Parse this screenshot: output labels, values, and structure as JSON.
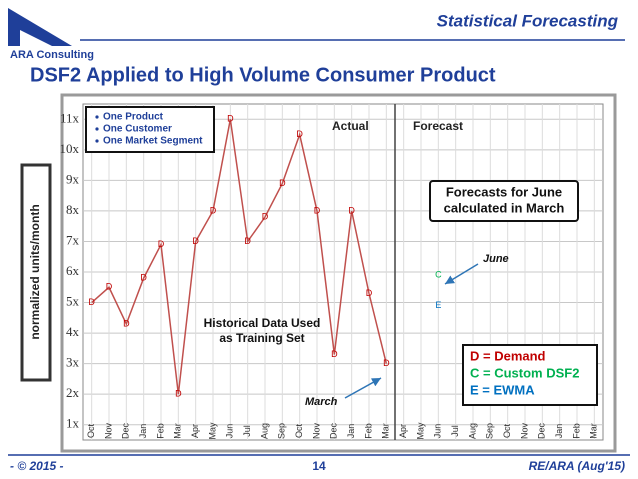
{
  "header": {
    "title": "Statistical Forecasting",
    "logo": "ARA Consulting"
  },
  "slide_title": "DSF2 Applied to High Volume Consumer Product",
  "footer": {
    "left": "- © 2015 -",
    "page": "14",
    "right": "RE/ARA (Aug'15)"
  },
  "chart_data": {
    "type": "line",
    "y_label": "normalized units/month",
    "info_box": [
      "One Product",
      "One Customer",
      "One Market Segment"
    ],
    "annotations": {
      "actual": "Actual",
      "forecast": "Forecast",
      "forecast_note": [
        "Forecasts for June",
        "calculated in March"
      ],
      "june": "June",
      "march": "March",
      "training": [
        "Historical Data Used",
        "as Training Set"
      ]
    },
    "categories": [
      "Oct",
      "Nov",
      "Dec",
      "Jan",
      "Feb",
      "Mar",
      "Apr",
      "May",
      "Jun",
      "Jul",
      "Aug",
      "Sep",
      "Oct",
      "Nov",
      "Dec",
      "Jan",
      "Feb",
      "Mar",
      "Apr",
      "May",
      "Jun",
      "Jul",
      "Aug",
      "Sep",
      "Oct",
      "Nov",
      "Dec",
      "Jan",
      "Feb",
      "Mar"
    ],
    "series": [
      {
        "name": "D = Demand",
        "marker": "D",
        "color": "#c00000",
        "line_color": "#c0504d",
        "values": [
          5,
          5.5,
          4.3,
          5.8,
          6.9,
          2.0,
          7.0,
          8.0,
          11.0,
          7.0,
          7.8,
          8.9,
          10.5,
          8.0,
          3.3,
          8.0,
          5.3,
          3.0,
          null,
          null,
          null,
          null,
          null,
          null,
          null,
          null,
          null,
          null,
          null,
          null
        ]
      },
      {
        "name": "C = Custom DSF2",
        "marker": "C",
        "color": "#00b050",
        "line_color": "#00b050",
        "values": [
          null,
          null,
          null,
          null,
          null,
          null,
          null,
          null,
          null,
          null,
          null,
          null,
          null,
          null,
          null,
          null,
          null,
          null,
          null,
          null,
          5.9,
          null,
          null,
          null,
          null,
          null,
          null,
          null,
          null,
          null
        ]
      },
      {
        "name": "E = EWMA",
        "marker": "E",
        "color": "#0070c0",
        "line_color": "#0070c0",
        "values": [
          null,
          null,
          null,
          null,
          null,
          null,
          null,
          null,
          null,
          null,
          null,
          null,
          null,
          null,
          null,
          null,
          null,
          null,
          null,
          null,
          4.9,
          null,
          null,
          null,
          null,
          null,
          null,
          null,
          null,
          null
        ]
      }
    ],
    "ylim": [
      0.5,
      11.5
    ],
    "yticks": [
      {
        "value": 1,
        "label": "1x"
      },
      {
        "value": 2,
        "label": "2x"
      },
      {
        "value": 3,
        "label": "3x"
      },
      {
        "value": 4,
        "label": "4x"
      },
      {
        "value": 5,
        "label": "5x"
      },
      {
        "value": 6,
        "label": "6x"
      },
      {
        "value": 7,
        "label": "7x"
      },
      {
        "value": 8,
        "label": "8x"
      },
      {
        "value": 9,
        "label": "9x"
      },
      {
        "value": 10,
        "label": "10x"
      },
      {
        "value": 11,
        "label": "11x"
      }
    ],
    "grid": true
  }
}
